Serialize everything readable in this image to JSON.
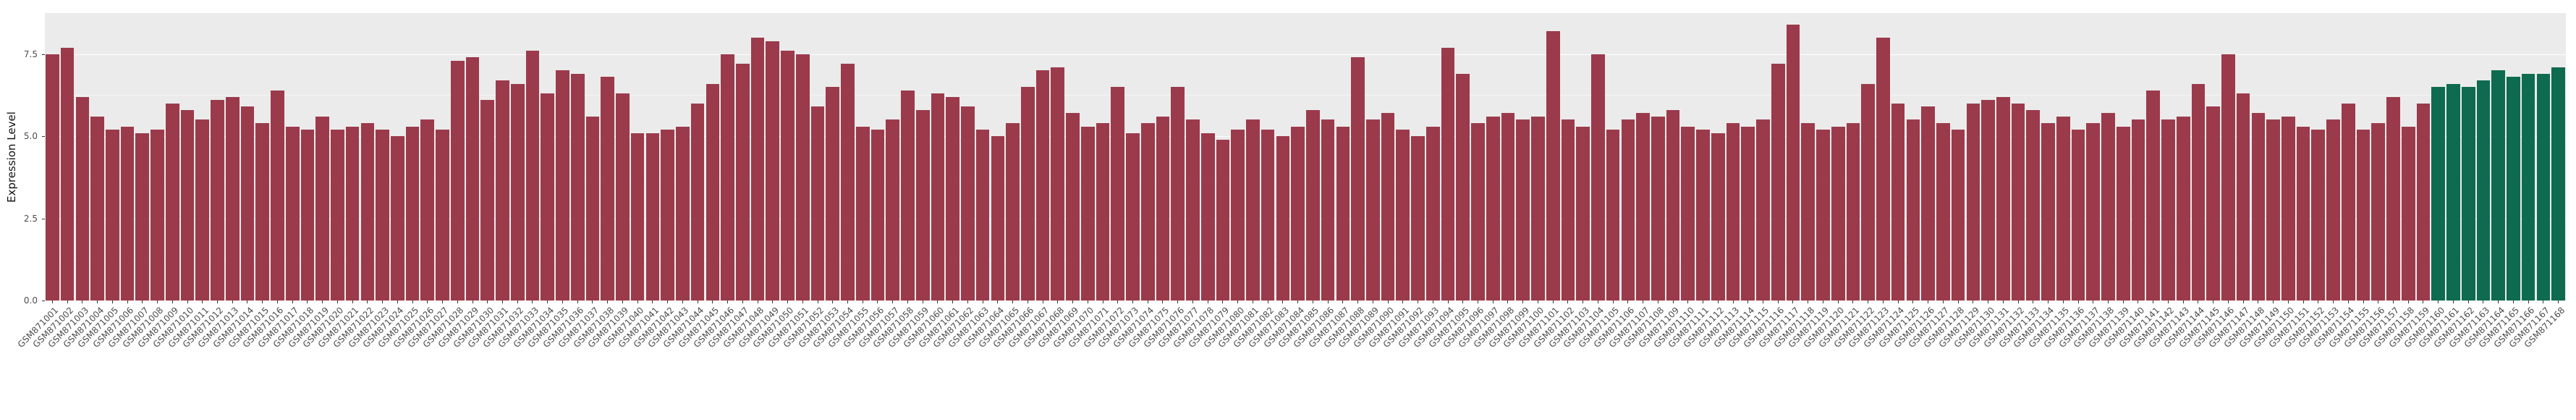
{
  "chart_data": {
    "type": "bar",
    "title": "",
    "xlabel": "",
    "ylabel": "Expression Level",
    "ylim": [
      0,
      8.75
    ],
    "yticks": [
      0,
      2.5,
      5.0,
      7.5
    ],
    "ytick_labels": [
      "0.0",
      "2.5",
      "5.0",
      "7.5"
    ],
    "yticks_minor": [
      1.25,
      3.75,
      6.25
    ],
    "grid": true,
    "legend": false,
    "bar_colors": {
      "default": "#9B3A4B",
      "highlight": "#0E6B4F",
      "highlight_start_index": 159
    },
    "colors": {
      "panel_background": "#EBEBEB",
      "gridline": "#FFFFFF",
      "figure_background": "#FFFFFF",
      "tick_text": "#4D4D4D",
      "tick_mark": "#333333"
    },
    "categories": [
      "GSM871001",
      "GSM871002",
      "GSM871003",
      "GSM871004",
      "GSM871005",
      "GSM871006",
      "GSM871007",
      "GSM871008",
      "GSM871009",
      "GSM871010",
      "GSM871011",
      "GSM871012",
      "GSM871013",
      "GSM871014",
      "GSM871015",
      "GSM871016",
      "GSM871017",
      "GSM871018",
      "GSM871019",
      "GSM871020",
      "GSM871021",
      "GSM871022",
      "GSM871023",
      "GSM871024",
      "GSM871025",
      "GSM871026",
      "GSM871027",
      "GSM871028",
      "GSM871029",
      "GSM871030",
      "GSM871031",
      "GSM871032",
      "GSM871033",
      "GSM871034",
      "GSM871035",
      "GSM871036",
      "GSM871037",
      "GSM871038",
      "GSM871039",
      "GSM871040",
      "GSM871041",
      "GSM871042",
      "GSM871043",
      "GSM871044",
      "GSM871045",
      "GSM871046",
      "GSM871047",
      "GSM871048",
      "GSM871049",
      "GSM871050",
      "GSM871051",
      "GSM871052",
      "GSM871053",
      "GSM871054",
      "GSM871055",
      "GSM871056",
      "GSM871057",
      "GSM871058",
      "GSM871059",
      "GSM871060",
      "GSM871061",
      "GSM871062",
      "GSM871063",
      "GSM871064",
      "GSM871065",
      "GSM871066",
      "GSM871067",
      "GSM871068",
      "GSM871069",
      "GSM871070",
      "GSM871071",
      "GSM871072",
      "GSM871073",
      "GSM871074",
      "GSM871075",
      "GSM871076",
      "GSM871077",
      "GSM871078",
      "GSM871079",
      "GSM871080",
      "GSM871081",
      "GSM871082",
      "GSM871083",
      "GSM871084",
      "GSM871085",
      "GSM871086",
      "GSM871087",
      "GSM871088",
      "GSM871089",
      "GSM871090",
      "GSM871091",
      "GSM871092",
      "GSM871093",
      "GSM871094",
      "GSM871095",
      "GSM871096",
      "GSM871097",
      "GSM871098",
      "GSM871099",
      "GSM871100",
      "GSM871101",
      "GSM871102",
      "GSM871103",
      "GSM871104",
      "GSM871105",
      "GSM871106",
      "GSM871107",
      "GSM871108",
      "GSM871109",
      "GSM871110",
      "GSM871111",
      "GSM871112",
      "GSM871113",
      "GSM871114",
      "GSM871115",
      "GSM871116",
      "GSM871117",
      "GSM871118",
      "GSM871119",
      "GSM871120",
      "GSM871121",
      "GSM871122",
      "GSM871123",
      "GSM871124",
      "GSM871125",
      "GSM871126",
      "GSM871127",
      "GSM871128",
      "GSM871129",
      "GSM871130",
      "GSM871131",
      "GSM871132",
      "GSM871133",
      "GSM871134",
      "GSM871135",
      "GSM871136",
      "GSM871137",
      "GSM871138",
      "GSM871139",
      "GSM871140",
      "GSM871141",
      "GSM871142",
      "GSM871143",
      "GSM871144",
      "GSM871145",
      "GSM871146",
      "GSM871147",
      "GSM871148",
      "GSM871149",
      "GSM871150",
      "GSM871151",
      "GSM871152",
      "GSM871153",
      "GSM871154",
      "GSM871155",
      "GSM871156",
      "GSM871157",
      "GSM871158",
      "GSM871159",
      "GSM871160",
      "GSM871161",
      "GSM871162",
      "GSM871163",
      "GSM871164",
      "GSM871165",
      "GSM871166",
      "GSM871167",
      "GSM871168"
    ],
    "values": [
      7.5,
      7.7,
      6.2,
      5.6,
      5.2,
      5.3,
      5.1,
      5.2,
      6.0,
      5.8,
      5.5,
      6.1,
      6.2,
      5.9,
      5.4,
      6.4,
      5.3,
      5.2,
      5.6,
      5.2,
      5.3,
      5.4,
      5.2,
      5.0,
      5.3,
      5.5,
      5.2,
      7.3,
      7.4,
      6.1,
      6.7,
      6.6,
      7.6,
      6.3,
      7.0,
      6.9,
      5.6,
      6.8,
      6.3,
      5.1,
      5.1,
      5.2,
      5.3,
      6.0,
      6.6,
      7.5,
      7.2,
      8.0,
      7.9,
      7.6,
      7.5,
      5.9,
      6.5,
      7.2,
      5.3,
      5.2,
      5.5,
      6.4,
      5.8,
      6.3,
      6.2,
      5.9,
      5.2,
      5.0,
      5.4,
      6.5,
      7.0,
      7.1,
      5.7,
      5.3,
      5.4,
      6.5,
      5.1,
      5.4,
      5.6,
      6.5,
      5.5,
      5.1,
      4.9,
      5.2,
      5.5,
      5.2,
      5.0,
      5.3,
      5.8,
      5.5,
      5.3,
      7.4,
      5.5,
      5.7,
      5.2,
      5.0,
      5.3,
      7.7,
      6.9,
      5.4,
      5.6,
      5.7,
      5.5,
      5.6,
      8.2,
      5.5,
      5.3,
      7.5,
      5.2,
      5.5,
      5.7,
      5.6,
      5.8,
      5.3,
      5.2,
      5.1,
      5.4,
      5.3,
      5.5,
      7.2,
      8.4,
      5.4,
      5.2,
      5.3,
      5.4,
      6.6,
      8.0,
      6.0,
      5.5,
      5.9,
      5.4,
      5.2,
      6.0,
      6.1,
      6.2,
      6.0,
      5.8,
      5.4,
      5.6,
      5.2,
      5.4,
      5.7,
      5.3,
      5.5,
      6.4,
      5.5,
      5.6,
      6.6,
      5.9,
      7.5,
      6.3,
      5.7,
      5.5,
      5.6,
      5.3,
      5.2,
      5.5,
      6.0,
      5.2,
      5.4,
      6.2,
      5.3,
      6.0,
      6.5,
      6.6,
      6.5,
      6.7,
      7.0,
      6.8,
      6.9,
      6.9,
      7.1
    ]
  }
}
